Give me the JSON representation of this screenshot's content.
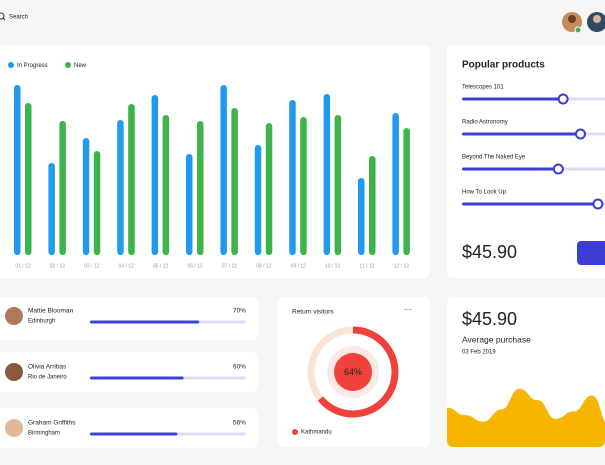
{
  "search": {
    "placeholder": "Search"
  },
  "activity_chart": {
    "type": "bar",
    "categories": [
      "01 / 12",
      "02 / 12",
      "03 / 12",
      "04 / 12",
      "05 / 12",
      "06 / 12",
      "07 / 12",
      "08 / 12",
      "09 / 12",
      "10 / 12",
      "11 / 12",
      "12 / 12"
    ],
    "series": [
      {
        "name": "In Progress",
        "color": "#1e9bf0",
        "values": [
          170,
          92,
          117,
          135,
          160,
          101,
          170,
          110,
          155,
          161,
          77,
          142
        ]
      },
      {
        "name": "New",
        "color": "#3bb54a",
        "values": [
          152,
          134,
          104,
          151,
          140,
          134,
          147,
          132,
          138,
          140,
          99,
          127
        ]
      }
    ],
    "ylim": [
      0,
      180
    ]
  },
  "popular_products": {
    "title": "Popular products",
    "range": [
      0,
      100
    ],
    "items": [
      {
        "name": "Telescopes 101",
        "value": 64
      },
      {
        "name": "Radio Astronomy",
        "value": 75
      },
      {
        "name": "Beyond The Naked Eye",
        "value": 61
      },
      {
        "name": "How To Look Up",
        "value": 86
      }
    ],
    "price": "$45.90",
    "color": "#3d3dd6"
  },
  "people": {
    "range": [
      0,
      100
    ],
    "color": "#3d3dd6",
    "items": [
      {
        "name": "Mattie Blooman",
        "city": "Edinburgh",
        "value": 70,
        "value_label": "70%"
      },
      {
        "name": "Olivia Arribas",
        "city": "Rio de Janeiro",
        "value": 60,
        "value_label": "60%"
      },
      {
        "name": "Graham Griffiths",
        "city": "Birmingham",
        "value": 56,
        "value_label": "56%"
      }
    ]
  },
  "return_visitors": {
    "type": "donut",
    "title": "Return visitors",
    "legend": "Kathmandu",
    "value": 64,
    "value_label": "64%",
    "color": "#f0413a"
  },
  "average_purchase": {
    "type": "area",
    "amount": "$45.90",
    "label": "Average purchase",
    "date": "03 Feb 2019",
    "values": [
      42,
      34,
      27,
      40,
      62,
      50,
      30,
      38,
      55,
      22
    ],
    "ylim": [
      0,
      80
    ],
    "color": "#f7b500"
  }
}
